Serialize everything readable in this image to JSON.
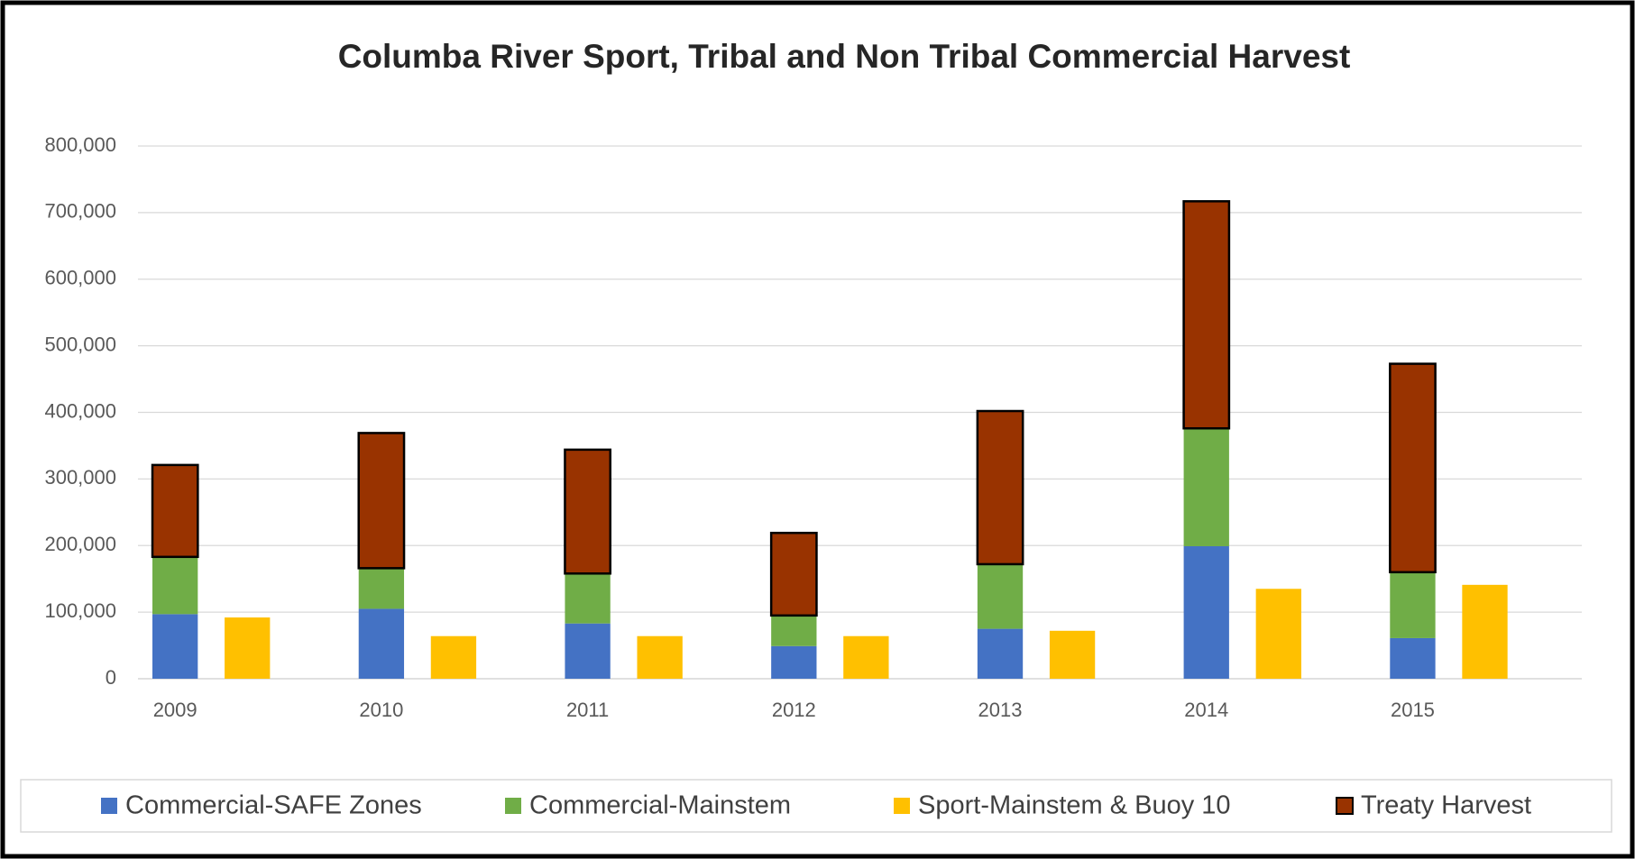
{
  "chart_data": {
    "type": "bar",
    "title": "Columba River Sport, Tribal and Non Tribal Commercial Harvest",
    "categories": [
      "2009",
      "2010",
      "2011",
      "2012",
      "2013",
      "2014",
      "2015"
    ],
    "series": [
      {
        "name": "Commercial-SAFE Zones",
        "color": "#4472c4",
        "stacked": true,
        "values": [
          97000,
          105000,
          83000,
          49000,
          75000,
          199000,
          61000
        ]
      },
      {
        "name": "Commercial-Mainstem",
        "color": "#70ad47",
        "stacked": true,
        "values": [
          86000,
          61000,
          75000,
          46000,
          97000,
          177000,
          99000
        ]
      },
      {
        "name": "Sport-Mainstem & Buoy 10",
        "color": "#ffc000",
        "stacked": false,
        "values": [
          92000,
          64000,
          64000,
          64000,
          72000,
          135000,
          141000
        ]
      },
      {
        "name": "Treaty Harvest",
        "color": "#993300",
        "edgecolor": "#000000",
        "stacked": true,
        "values": [
          138000,
          203000,
          186000,
          124000,
          230000,
          341000,
          313000
        ]
      }
    ],
    "ylim": [
      0,
      800000
    ],
    "yticks": [
      0,
      {
        "value": 100000,
        "label": "100,000"
      },
      {
        "value": 200000,
        "label": "200,000"
      },
      {
        "value": 300000,
        "label": "300,000"
      },
      {
        "value": 400000,
        "label": "400,000"
      },
      {
        "value": 500000,
        "label": "500,000"
      },
      {
        "value": 600000,
        "label": "600,000"
      },
      {
        "value": 700000,
        "label": "700,000"
      },
      {
        "value": 800000,
        "label": "800,000"
      }
    ],
    "grid": true,
    "legend": "bottom"
  }
}
